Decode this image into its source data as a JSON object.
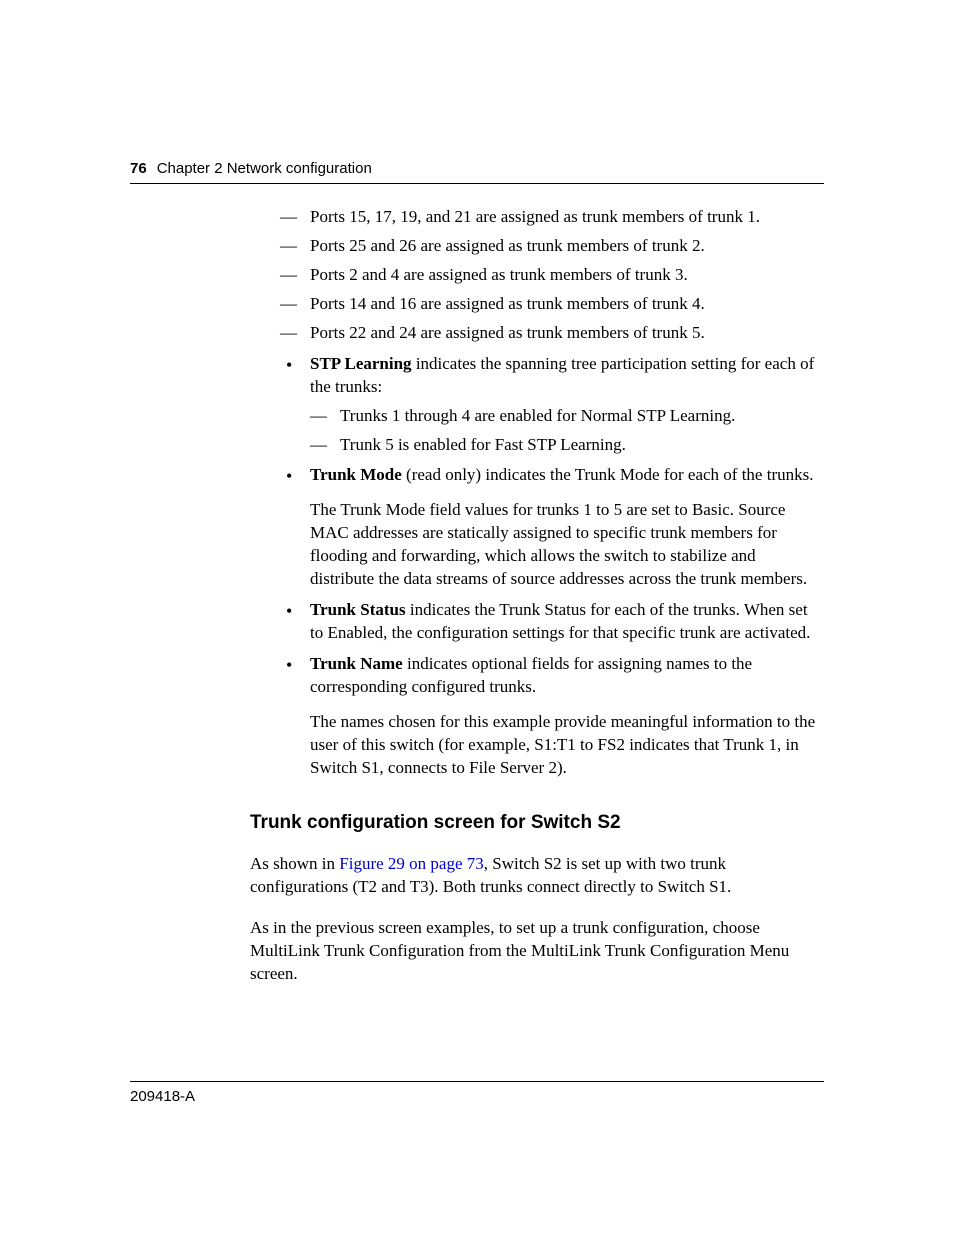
{
  "header": {
    "page_number": "76",
    "chapter": "Chapter 2  Network configuration"
  },
  "top_dashes": [
    "Ports 15, 17, 19, and 21 are assigned as trunk members of trunk 1.",
    "Ports 25 and 26 are assigned as trunk members of trunk 2.",
    "Ports 2 and 4 are assigned as trunk members of trunk 3.",
    "Ports 14 and 16 are assigned as trunk members of trunk 4.",
    "Ports 22 and 24 are assigned as trunk members of trunk 5."
  ],
  "bullets": {
    "stp": {
      "label": "STP Learning",
      "text": " indicates the spanning tree participation setting for each of the trunks:",
      "subs": [
        "Trunks 1 through 4 are enabled for Normal STP Learning.",
        "Trunk 5 is enabled for Fast STP Learning."
      ]
    },
    "mode": {
      "label": "Trunk Mode",
      "text": " (read only) indicates the Trunk Mode for each of the trunks.",
      "para": "The Trunk Mode field values for trunks 1 to 5 are set to Basic. Source MAC addresses are statically assigned to specific trunk members for flooding and forwarding, which allows the switch to stabilize and distribute the data streams of source addresses across the trunk members."
    },
    "status": {
      "label": "Trunk Status",
      "text": " indicates the Trunk Status for each of the trunks. When set to Enabled, the configuration settings for that specific trunk are activated."
    },
    "name": {
      "label": "Trunk Name",
      "text": " indicates optional fields for assigning names to the corresponding configured trunks.",
      "para": "The names chosen for this example provide meaningful information to the user of this switch (for example, S1:T1 to FS2 indicates that Trunk 1, in Switch S1, connects to File Server 2)."
    }
  },
  "section": {
    "heading": "Trunk configuration screen for Switch S2",
    "p1_pre": "As shown in ",
    "p1_link": "Figure 29 on page 73",
    "p1_post": ", Switch S2 is set up with two trunk configurations (T2 and T3). Both trunks connect directly to Switch S1.",
    "p2": "As in the previous screen examples, to set up a trunk configuration, choose MultiLink Trunk Configuration from the MultiLink Trunk Configuration Menu screen."
  },
  "footer": {
    "doc_id": "209418-A"
  }
}
